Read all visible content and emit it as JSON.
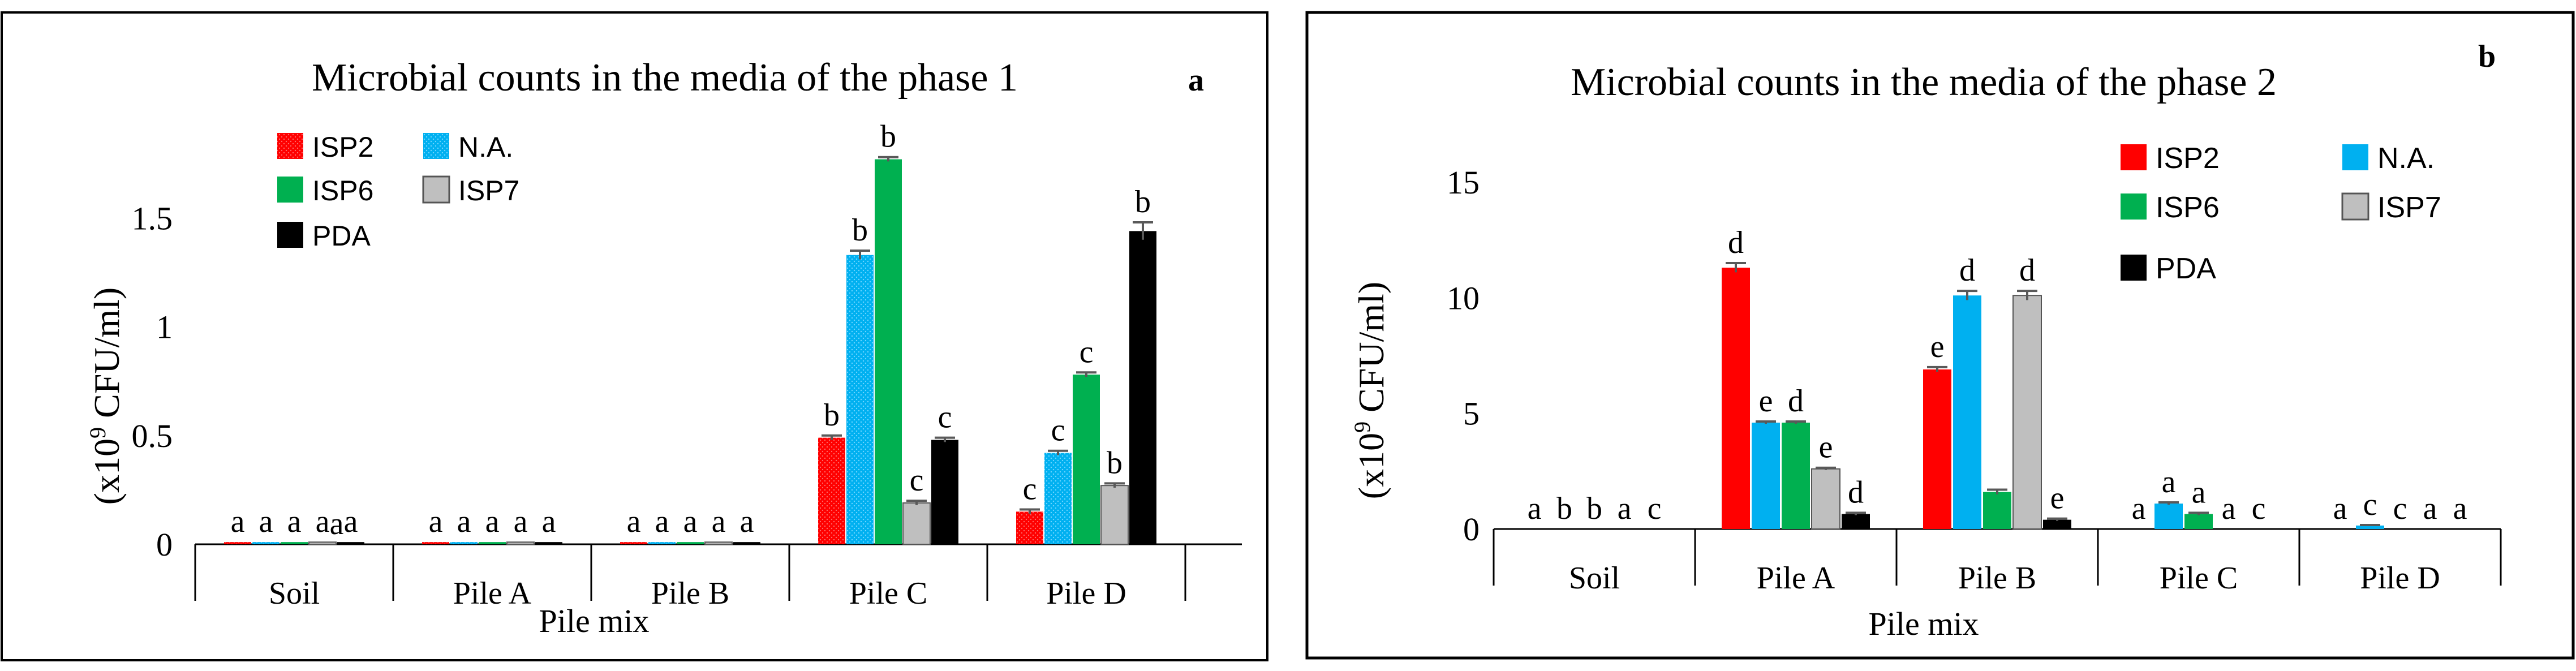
{
  "chart_data": [
    {
      "type": "bar",
      "title": "Microbial counts in the media of the phase 1",
      "panel_label": "a",
      "xlabel": "Pile mix",
      "ylabel": "(x10⁹ CFU/ml)",
      "ylim": [
        0,
        1.8
      ],
      "yticks": [
        0,
        0.5,
        1,
        1.5
      ],
      "ytick_labels": [
        "0",
        "0.5",
        "1",
        "1.5"
      ],
      "categories": [
        "Soil",
        "Pile A",
        "Pile B",
        "Pile C",
        "Pile D"
      ],
      "legend_position": "top-left",
      "series": [
        {
          "name": "ISP2",
          "color": "#ff0000",
          "values": [
            0.01,
            0.01,
            0.01,
            0.49,
            0.15
          ],
          "errors": [
            0,
            0,
            0,
            0.01,
            0.01
          ],
          "letters": [
            "a",
            "a",
            "a",
            "b",
            "c"
          ]
        },
        {
          "name": "N.A.",
          "color": "#00b0f0",
          "values": [
            0.01,
            0.01,
            0.01,
            1.33,
            0.42
          ],
          "errors": [
            0,
            0,
            0,
            0.02,
            0.01
          ],
          "letters": [
            "a",
            "a",
            "a",
            "b",
            "c"
          ]
        },
        {
          "name": "ISP6",
          "color": "#00b050",
          "values": [
            0.01,
            0.01,
            0.01,
            1.77,
            0.78
          ],
          "errors": [
            0,
            0,
            0,
            0.01,
            0.01
          ],
          "letters": [
            "a",
            "a",
            "a",
            "b",
            "c"
          ]
        },
        {
          "name": "ISP7",
          "color": "#bfbfbf",
          "values": [
            0.01,
            0.01,
            0.01,
            0.19,
            0.27
          ],
          "errors": [
            0,
            0,
            0,
            0.01,
            0.01
          ],
          "letters": [
            "a",
            "a",
            "a",
            "c",
            "b"
          ]
        },
        {
          "name": "PDA",
          "color": "#000000",
          "values": [
            0.01,
            0.01,
            0.01,
            0.48,
            1.44
          ],
          "errors": [
            0,
            0,
            0,
            0.01,
            0.04
          ],
          "letters": [
            "a",
            "a",
            "a",
            "c",
            "b"
          ]
        }
      ],
      "extra_letters": [
        "a"
      ]
    },
    {
      "type": "bar",
      "title": "Microbial counts in the media of the phase 2",
      "panel_label": "b",
      "xlabel": "Pile mix",
      "ylabel": "(x10⁹ CFU/ml)",
      "ylim": [
        0,
        15
      ],
      "yticks": [
        0,
        5,
        10,
        15
      ],
      "ytick_labels": [
        "0",
        "5",
        "10",
        "15"
      ],
      "categories": [
        "Soil",
        "Pile A",
        "Pile B",
        "Pile C",
        "Pile D"
      ],
      "legend_position": "top-right",
      "series": [
        {
          "name": "ISP2",
          "color": "#ff0000",
          "values": [
            0,
            11.3,
            6.9,
            0,
            0
          ],
          "errors": [
            0,
            0.2,
            0.1,
            0,
            0
          ],
          "letters": [
            "a",
            "d",
            "e",
            "a",
            "a"
          ]
        },
        {
          "name": "N.A.",
          "color": "#00b0f0",
          "values": [
            0,
            4.6,
            10.1,
            1.1,
            0.15
          ],
          "errors": [
            0,
            0.05,
            0.2,
            0.05,
            0.02
          ],
          "letters": [
            "b",
            "e",
            "d",
            "a",
            "c"
          ]
        },
        {
          "name": "ISP6",
          "color": "#00b050",
          "values": [
            0,
            4.6,
            1.6,
            0.65,
            0
          ],
          "errors": [
            0,
            0.05,
            0.1,
            0.05,
            0
          ],
          "letters": [
            "b",
            "d",
            "",
            "a",
            "c"
          ]
        },
        {
          "name": "ISP7",
          "color": "#bfbfbf",
          "values": [
            0,
            2.6,
            10.1,
            0,
            0
          ],
          "errors": [
            0,
            0.05,
            0.2,
            0,
            0
          ],
          "letters": [
            "a",
            "e",
            "d",
            "a",
            "a"
          ]
        },
        {
          "name": "PDA",
          "color": "#000000",
          "values": [
            0,
            0.65,
            0.4,
            0,
            0
          ],
          "errors": [
            0,
            0.05,
            0.05,
            0,
            0
          ],
          "letters": [
            "c",
            "d",
            "e",
            "c",
            "a"
          ]
        }
      ]
    }
  ]
}
